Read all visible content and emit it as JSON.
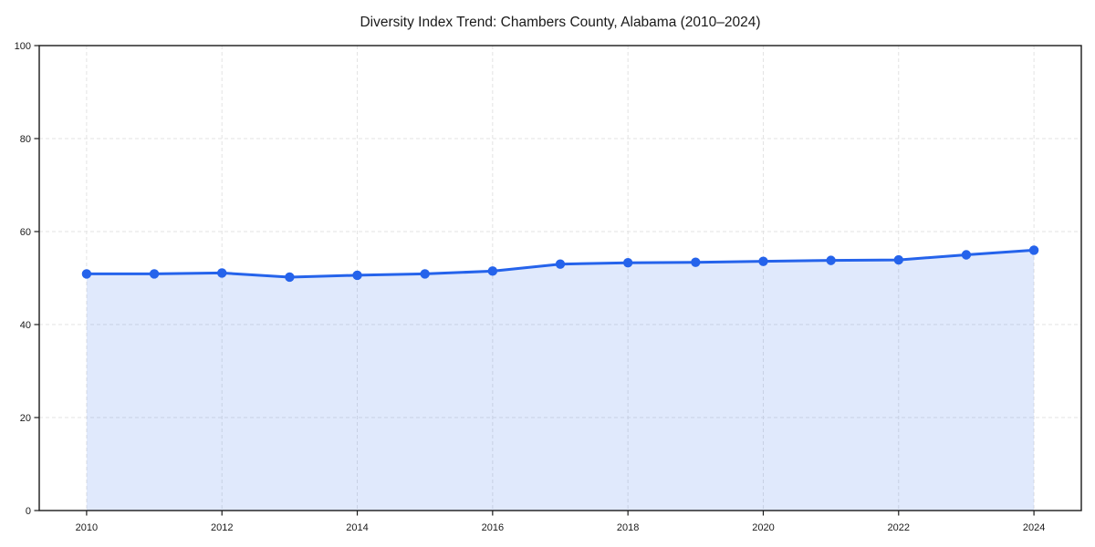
{
  "chart_data": {
    "type": "line",
    "title": "Diversity Index Trend: Chambers County, Alabama (2010–2024)",
    "xlabel": "",
    "ylabel": "",
    "x": [
      2010,
      2011,
      2012,
      2013,
      2014,
      2015,
      2016,
      2017,
      2018,
      2019,
      2020,
      2021,
      2022,
      2023,
      2024
    ],
    "values": [
      50.9,
      50.9,
      51.1,
      50.2,
      50.6,
      50.9,
      51.5,
      53.0,
      53.3,
      53.4,
      53.6,
      53.8,
      53.9,
      55.0,
      56.0
    ],
    "xticks": [
      2010,
      2012,
      2014,
      2016,
      2018,
      2020,
      2022,
      2024
    ],
    "yticks": [
      0,
      20,
      40,
      60,
      80,
      100
    ],
    "xlim": [
      2009.3,
      2024.7
    ],
    "ylim": [
      0,
      100
    ],
    "grid": true,
    "legend_position": "none",
    "line_color": "#2563eb",
    "marker_color": "#2563eb",
    "fill_color": "rgba(37, 99, 235, 0.14)",
    "marker": "circle",
    "area_baseline": 0
  }
}
